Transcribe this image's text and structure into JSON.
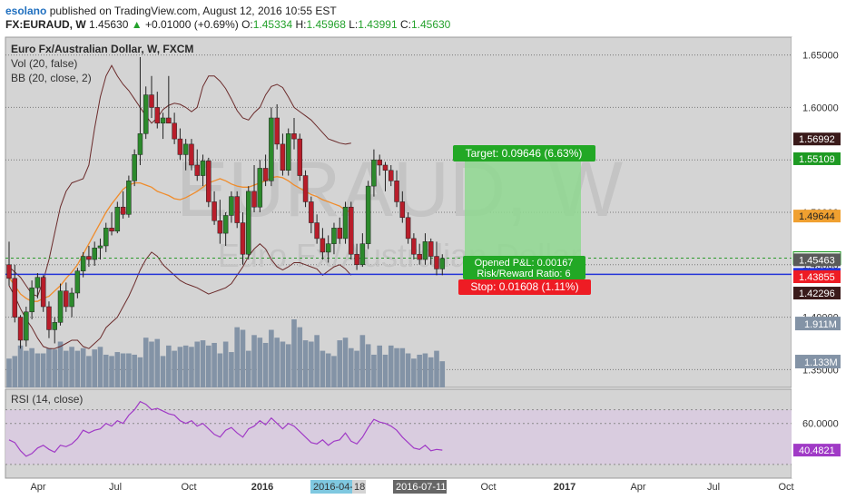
{
  "header": {
    "author": "esolano",
    "published_text": "published on TradingView.com, August 12, 2016 10:55 EST",
    "symbol": "FX:EURAUD, W",
    "last_price": "1.45630",
    "change_arrow": "▲",
    "change": "+0.01000 (+0.69%)",
    "o_label": "O:",
    "o_value": "1.45334",
    "h_label": "H:",
    "h_value": "1.45968",
    "l_label": "L:",
    "l_value": "1.43991",
    "c_label": "C:",
    "c_value": "1.45630"
  },
  "colors": {
    "panel_bg": "#d4d4d4",
    "rsi_band": "#d9cbe0",
    "candle_up": "#2c8a2c",
    "candle_down": "#b81d2a",
    "volume": "#8393a6",
    "bb_line": "#6b2b2b",
    "bb_basis": "#f08c2b",
    "rsi_line": "#a03ac6",
    "horizontal_line": "#2434d8",
    "target_zone": "#8fd890",
    "stop_zone": "#ec8a8a",
    "price_dash": "#2c9a2c"
  },
  "chart_data": [
    {
      "type": "candlestick",
      "title": "Euro Fx/Australian Dollar, W, FXCM",
      "indicators": [
        "Vol (20, false)",
        "BB (20, close, 2)"
      ],
      "watermark_line1": "EURAUD, W",
      "watermark_line2": "Euro Fx/Australian Dollar",
      "ylim": [
        1.333,
        1.667
      ],
      "y_ticks": [
        "1.65000",
        "1.60000",
        "1.55000",
        "1.50000",
        "1.45000",
        "1.40000",
        "1.35000"
      ],
      "x_ticks": [
        "Apr",
        "Jul",
        "Oct",
        "2016",
        "Apr",
        "Jul",
        "Oct",
        "2017",
        "Apr",
        "Jul",
        "Oct"
      ],
      "x_highlight_labels": [
        "2016-04-04",
        "18",
        "2016-07-11"
      ],
      "ohlc": [
        [
          1.45,
          1.472,
          1.43,
          1.437
        ],
        [
          1.437,
          1.45,
          1.395,
          1.4
        ],
        [
          1.4,
          1.402,
          1.37,
          1.378
        ],
        [
          1.378,
          1.41,
          1.372,
          1.405
        ],
        [
          1.405,
          1.435,
          1.398,
          1.428
        ],
        [
          1.428,
          1.442,
          1.418,
          1.438
        ],
        [
          1.438,
          1.44,
          1.405,
          1.41
        ],
        [
          1.41,
          1.415,
          1.38,
          1.388
        ],
        [
          1.388,
          1.4,
          1.375,
          1.395
        ],
        [
          1.395,
          1.432,
          1.392,
          1.425
        ],
        [
          1.425,
          1.433,
          1.405,
          1.41
        ],
        [
          1.41,
          1.428,
          1.4,
          1.423
        ],
        [
          1.423,
          1.447,
          1.418,
          1.444
        ],
        [
          1.444,
          1.462,
          1.438,
          1.458
        ],
        [
          1.458,
          1.468,
          1.448,
          1.455
        ],
        [
          1.455,
          1.472,
          1.449,
          1.466
        ],
        [
          1.466,
          1.475,
          1.455,
          1.468
        ],
        [
          1.468,
          1.49,
          1.462,
          1.485
        ],
        [
          1.485,
          1.5,
          1.478,
          1.482
        ],
        [
          1.482,
          1.51,
          1.48,
          1.505
        ],
        [
          1.505,
          1.52,
          1.494,
          1.498
        ],
        [
          1.498,
          1.535,
          1.495,
          1.53
        ],
        [
          1.53,
          1.56,
          1.525,
          1.555
        ],
        [
          1.555,
          1.648,
          1.545,
          1.575
        ],
        [
          1.575,
          1.62,
          1.57,
          1.612
        ],
        [
          1.612,
          1.63,
          1.59,
          1.6
        ],
        [
          1.6,
          1.615,
          1.58,
          1.585
        ],
        [
          1.585,
          1.595,
          1.57,
          1.59
        ],
        [
          1.59,
          1.63,
          1.585,
          1.585
        ],
        [
          1.585,
          1.595,
          1.565,
          1.57
        ],
        [
          1.57,
          1.58,
          1.55,
          1.555
        ],
        [
          1.555,
          1.57,
          1.54,
          1.565
        ],
        [
          1.565,
          1.57,
          1.54,
          1.545
        ],
        [
          1.545,
          1.56,
          1.53,
          1.535
        ],
        [
          1.535,
          1.555,
          1.525,
          1.549
        ],
        [
          1.549,
          1.552,
          1.505,
          1.51
        ],
        [
          1.51,
          1.52,
          1.488,
          1.492
        ],
        [
          1.492,
          1.512,
          1.47,
          1.48
        ],
        [
          1.48,
          1.5,
          1.468,
          1.497
        ],
        [
          1.497,
          1.52,
          1.49,
          1.515
        ],
        [
          1.515,
          1.52,
          1.485,
          1.49
        ],
        [
          1.49,
          1.5,
          1.45,
          1.46
        ],
        [
          1.46,
          1.525,
          1.455,
          1.52
        ],
        [
          1.52,
          1.545,
          1.5,
          1.505
        ],
        [
          1.505,
          1.55,
          1.5,
          1.542
        ],
        [
          1.542,
          1.555,
          1.525,
          1.53
        ],
        [
          1.53,
          1.6,
          1.525,
          1.59
        ],
        [
          1.59,
          1.603,
          1.56,
          1.565
        ],
        [
          1.565,
          1.575,
          1.535,
          1.54
        ],
        [
          1.54,
          1.58,
          1.535,
          1.575
        ],
        [
          1.575,
          1.59,
          1.56,
          1.57
        ],
        [
          1.57,
          1.575,
          1.53,
          1.535
        ],
        [
          1.535,
          1.54,
          1.505,
          1.51
        ],
        [
          1.51,
          1.515,
          1.48,
          1.49
        ],
        [
          1.49,
          1.498,
          1.47,
          1.475
        ],
        [
          1.475,
          1.485,
          1.455,
          1.462
        ],
        [
          1.462,
          1.478,
          1.452,
          1.47
        ],
        [
          1.47,
          1.49,
          1.46,
          1.485
        ],
        [
          1.485,
          1.495,
          1.47,
          1.475
        ],
        [
          1.475,
          1.51,
          1.47,
          1.505
        ],
        [
          1.505,
          1.51,
          1.455,
          1.46
        ],
        [
          1.46,
          1.47,
          1.445,
          1.45
        ],
        [
          1.45,
          1.48,
          1.448,
          1.47
        ],
        [
          1.47,
          1.53,
          1.465,
          1.525
        ],
        [
          1.525,
          1.56,
          1.515,
          1.55
        ],
        [
          1.55,
          1.555,
          1.535,
          1.545
        ],
        [
          1.545,
          1.548,
          1.52,
          1.54
        ],
        [
          1.54,
          1.545,
          1.525,
          1.53
        ],
        [
          1.53,
          1.54,
          1.505,
          1.51
        ],
        [
          1.51,
          1.52,
          1.49,
          1.495
        ],
        [
          1.495,
          1.5,
          1.47,
          1.475
        ],
        [
          1.475,
          1.48,
          1.455,
          1.46
        ],
        [
          1.46,
          1.47,
          1.45,
          1.455
        ],
        [
          1.455,
          1.48,
          1.45,
          1.472
        ],
        [
          1.472,
          1.475,
          1.45,
          1.458
        ],
        [
          1.458,
          1.472,
          1.44,
          1.446
        ],
        [
          1.446,
          1.46,
          1.44,
          1.456
        ]
      ],
      "volume": [
        22,
        24,
        32,
        28,
        30,
        26,
        26,
        30,
        29,
        35,
        28,
        31,
        28,
        30,
        24,
        29,
        31,
        25,
        24,
        27,
        26,
        26,
        25,
        23,
        38,
        35,
        37,
        24,
        32,
        28,
        31,
        32,
        31,
        35,
        36,
        32,
        34,
        26,
        35,
        27,
        46,
        44,
        28,
        40,
        38,
        34,
        44,
        38,
        35,
        33,
        52,
        46,
        36,
        35,
        40,
        28,
        26,
        24,
        36,
        38,
        30,
        28,
        40,
        33,
        25,
        32,
        25,
        32,
        30,
        30,
        26,
        22,
        25,
        26,
        23,
        28,
        20
      ],
      "volume_scale_max": 52,
      "volume_labels": [
        "1.911M",
        "1.133M"
      ],
      "bollinger": {
        "upper": [
          1.448,
          1.443,
          1.438,
          1.43,
          1.422,
          1.42,
          1.435,
          1.455,
          1.48,
          1.505,
          1.52,
          1.528,
          1.53,
          1.532,
          1.545,
          1.58,
          1.61,
          1.63,
          1.64,
          1.63,
          1.622,
          1.616,
          1.608,
          1.6,
          1.592,
          1.585,
          1.59,
          1.598,
          1.602,
          1.604,
          1.603,
          1.6,
          1.596,
          1.6,
          1.62,
          1.63,
          1.63,
          1.625,
          1.618,
          1.608,
          1.597,
          1.59,
          1.588,
          1.595,
          1.6,
          1.612,
          1.62,
          1.622,
          1.619,
          1.61,
          1.6,
          1.596,
          1.592,
          1.588,
          1.582,
          1.576,
          1.57,
          1.568,
          1.566,
          1.565,
          1.566
        ],
        "basis_start": 0,
        "basis": [
          1.438,
          1.43,
          1.422,
          1.418,
          1.415,
          1.415,
          1.418,
          1.42,
          1.425,
          1.43,
          1.437,
          1.443,
          1.45,
          1.46,
          1.47,
          1.48,
          1.49,
          1.5,
          1.508,
          1.515,
          1.522,
          1.526,
          1.528,
          1.528,
          1.526,
          1.524,
          1.52,
          1.518,
          1.516,
          1.513,
          1.512,
          1.514,
          1.517,
          1.52,
          1.524,
          1.528,
          1.53,
          1.532,
          1.53,
          1.527,
          1.525,
          1.524,
          1.524,
          1.526,
          1.528,
          1.53,
          1.533,
          1.534,
          1.533,
          1.53,
          1.526,
          1.523,
          1.52,
          1.517,
          1.515,
          1.512,
          1.51,
          1.508,
          1.506,
          1.502,
          1.5
        ],
        "lower": [
          1.43,
          1.42,
          1.408,
          1.398,
          1.39,
          1.38,
          1.372,
          1.37,
          1.37,
          1.372,
          1.375,
          1.378,
          1.378,
          1.372,
          1.37,
          1.375,
          1.38,
          1.39,
          1.395,
          1.4,
          1.41,
          1.42,
          1.432,
          1.445,
          1.455,
          1.462,
          1.458,
          1.45,
          1.445,
          1.44,
          1.435,
          1.432,
          1.43,
          1.428,
          1.425,
          1.422,
          1.424,
          1.426,
          1.428,
          1.432,
          1.44,
          1.448,
          1.458,
          1.465,
          1.47,
          1.465,
          1.455,
          1.448,
          1.445,
          1.448,
          1.452,
          1.452,
          1.45,
          1.448,
          1.446,
          1.44,
          1.444,
          1.448,
          1.45,
          1.446,
          1.44
        ]
      },
      "horizontal_line": 1.44088,
      "position": {
        "target_label": "Target: 0.09646 (6.63%)",
        "pl_label_line1": "Opened P&L: 0.00167",
        "pl_label_line2": "Risk/Reward Ratio: 6",
        "stop_label": "Stop: 0.01608 (1.11%)",
        "target": 1.55109,
        "entry": 1.45463,
        "stop": 1.43855
      },
      "price_labels": [
        {
          "value": 1.56992,
          "text": "1.56992",
          "style": "dark"
        },
        {
          "value": 1.55109,
          "text": "1.55109",
          "style": "green"
        },
        {
          "value": 1.49644,
          "text": "1.49644",
          "style": "orange"
        },
        {
          "value": 1.4563,
          "text": "1.45630",
          "style": "greenlight"
        },
        {
          "value": 1.45463,
          "text": "1.45463",
          "style": "gray"
        },
        {
          "value": 1.44088,
          "text": "1.44088",
          "style": "blue"
        },
        {
          "value": 1.43855,
          "text": "1.43855",
          "style": "red"
        },
        {
          "value": 1.42296,
          "text": "1.42296",
          "style": "dark"
        }
      ]
    },
    {
      "type": "line",
      "title": "RSI (14, close)",
      "ylim": [
        20,
        85
      ],
      "y_ticks": [
        "60.0000"
      ],
      "last_value_label": "40.4821",
      "values": [
        48,
        46,
        40,
        36,
        38,
        42,
        44,
        41,
        39,
        44,
        43,
        45,
        49,
        55,
        53,
        55,
        56,
        60,
        58,
        62,
        60,
        66,
        70,
        76,
        74,
        70,
        71,
        69,
        67,
        66,
        62,
        60,
        62,
        58,
        60,
        56,
        52,
        50,
        55,
        57,
        53,
        50,
        56,
        58,
        62,
        59,
        64,
        60,
        56,
        60,
        58,
        54,
        50,
        46,
        45,
        48,
        44,
        47,
        48,
        53,
        47,
        45,
        50,
        57,
        63,
        61,
        60,
        58,
        55,
        50,
        46,
        42,
        41,
        44,
        40,
        41,
        40.4821
      ]
    }
  ]
}
